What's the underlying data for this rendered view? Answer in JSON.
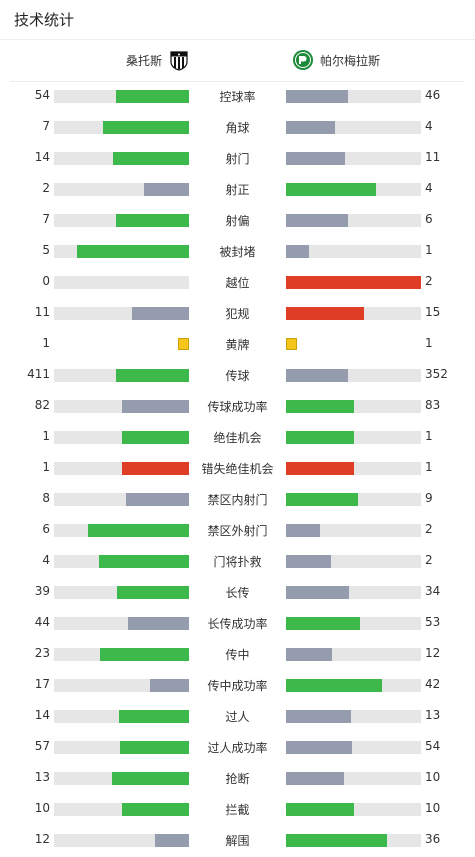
{
  "page": {
    "title": "技术统计"
  },
  "teams": {
    "home": {
      "name": "桑托斯",
      "logo": "santos-crest-icon"
    },
    "away": {
      "name": "帕尔梅拉斯",
      "logo": "palmeiras-crest-icon"
    }
  },
  "colors": {
    "leading": "#3cb94a",
    "trailing": "#949cad",
    "error": "#e03d26",
    "card": "#f5c518",
    "track": "#e6e6e6"
  },
  "stats": [
    {
      "label": "控球率",
      "home": "54",
      "away": "46",
      "home_fill": 0.54,
      "away_fill": 0.46,
      "home_color": "green",
      "away_color": "grey"
    },
    {
      "label": "角球",
      "home": "7",
      "away": "4",
      "home_fill": 0.64,
      "away_fill": 0.36,
      "home_color": "green",
      "away_color": "grey"
    },
    {
      "label": "射门",
      "home": "14",
      "away": "11",
      "home_fill": 0.56,
      "away_fill": 0.44,
      "home_color": "green",
      "away_color": "grey"
    },
    {
      "label": "射正",
      "home": "2",
      "away": "4",
      "home_fill": 0.33,
      "away_fill": 0.67,
      "home_color": "grey",
      "away_color": "green"
    },
    {
      "label": "射偏",
      "home": "7",
      "away": "6",
      "home_fill": 0.54,
      "away_fill": 0.46,
      "home_color": "green",
      "away_color": "grey"
    },
    {
      "label": "被封堵",
      "home": "5",
      "away": "1",
      "home_fill": 0.83,
      "away_fill": 0.17,
      "home_color": "green",
      "away_color": "grey"
    },
    {
      "label": "越位",
      "home": "0",
      "away": "2",
      "home_fill": 0.0,
      "away_fill": 1.0,
      "home_color": "grey",
      "away_color": "red"
    },
    {
      "label": "犯规",
      "home": "11",
      "away": "15",
      "home_fill": 0.42,
      "away_fill": 0.58,
      "home_color": "grey",
      "away_color": "red"
    },
    {
      "label": "黄牌",
      "home": "1",
      "away": "1",
      "home_fill": 0,
      "away_fill": 0,
      "home_color": "card",
      "away_color": "card"
    },
    {
      "label": "传球",
      "home": "411",
      "away": "352",
      "home_fill": 0.54,
      "away_fill": 0.46,
      "home_color": "green",
      "away_color": "grey"
    },
    {
      "label": "传球成功率",
      "home": "82",
      "away": "83",
      "home_fill": 0.5,
      "away_fill": 0.5,
      "home_color": "grey",
      "away_color": "green"
    },
    {
      "label": "绝佳机会",
      "home": "1",
      "away": "1",
      "home_fill": 0.5,
      "away_fill": 0.5,
      "home_color": "green",
      "away_color": "green"
    },
    {
      "label": "错失绝佳机会",
      "home": "1",
      "away": "1",
      "home_fill": 0.5,
      "away_fill": 0.5,
      "home_color": "red",
      "away_color": "red"
    },
    {
      "label": "禁区内射门",
      "home": "8",
      "away": "9",
      "home_fill": 0.47,
      "away_fill": 0.53,
      "home_color": "grey",
      "away_color": "green"
    },
    {
      "label": "禁区外射门",
      "home": "6",
      "away": "2",
      "home_fill": 0.75,
      "away_fill": 0.25,
      "home_color": "green",
      "away_color": "grey"
    },
    {
      "label": "门将扑救",
      "home": "4",
      "away": "2",
      "home_fill": 0.67,
      "away_fill": 0.33,
      "home_color": "green",
      "away_color": "grey"
    },
    {
      "label": "长传",
      "home": "39",
      "away": "34",
      "home_fill": 0.53,
      "away_fill": 0.47,
      "home_color": "green",
      "away_color": "grey"
    },
    {
      "label": "长传成功率",
      "home": "44",
      "away": "53",
      "home_fill": 0.45,
      "away_fill": 0.55,
      "home_color": "grey",
      "away_color": "green"
    },
    {
      "label": "传中",
      "home": "23",
      "away": "12",
      "home_fill": 0.66,
      "away_fill": 0.34,
      "home_color": "green",
      "away_color": "grey"
    },
    {
      "label": "传中成功率",
      "home": "17",
      "away": "42",
      "home_fill": 0.29,
      "away_fill": 0.71,
      "home_color": "grey",
      "away_color": "green"
    },
    {
      "label": "过人",
      "home": "14",
      "away": "13",
      "home_fill": 0.52,
      "away_fill": 0.48,
      "home_color": "green",
      "away_color": "grey"
    },
    {
      "label": "过人成功率",
      "home": "57",
      "away": "54",
      "home_fill": 0.51,
      "away_fill": 0.49,
      "home_color": "green",
      "away_color": "grey"
    },
    {
      "label": "抢断",
      "home": "13",
      "away": "10",
      "home_fill": 0.57,
      "away_fill": 0.43,
      "home_color": "green",
      "away_color": "grey"
    },
    {
      "label": "拦截",
      "home": "10",
      "away": "10",
      "home_fill": 0.5,
      "away_fill": 0.5,
      "home_color": "green",
      "away_color": "green"
    },
    {
      "label": "解围",
      "home": "12",
      "away": "36",
      "home_fill": 0.25,
      "away_fill": 0.75,
      "home_color": "grey",
      "away_color": "green"
    }
  ]
}
